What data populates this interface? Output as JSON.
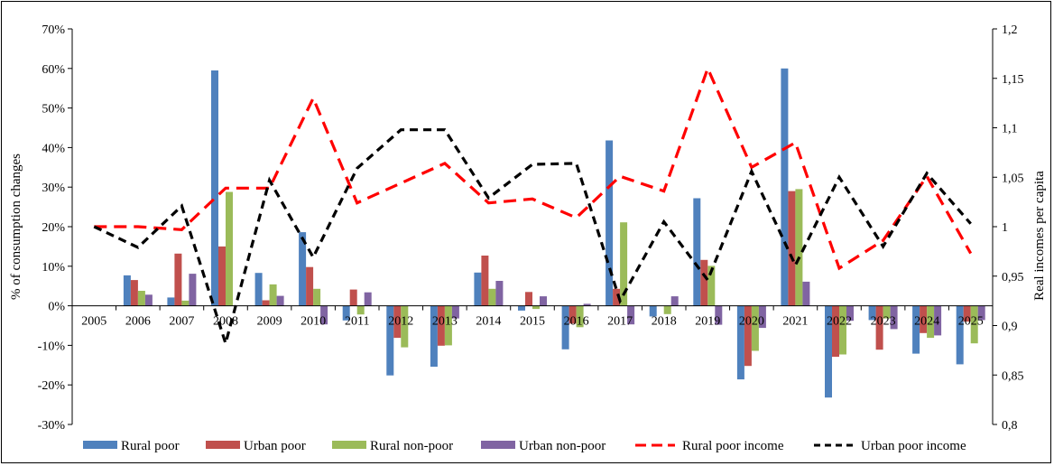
{
  "chart_data": {
    "type": "bar",
    "categories": [
      "2005",
      "2006",
      "2007",
      "2008",
      "2009",
      "2010",
      "2011",
      "2012",
      "2013",
      "2014",
      "2015",
      "2016",
      "2017",
      "2018",
      "2019",
      "2020",
      "2021",
      "2022",
      "2023",
      "2024",
      "2025"
    ],
    "left_axis": {
      "title": "% of consumption changes",
      "ylim": [
        -30,
        70
      ],
      "ticks": [
        -30,
        -20,
        -10,
        0,
        10,
        20,
        30,
        40,
        50,
        60,
        70
      ],
      "tick_labels": [
        "-30%",
        "-20%",
        "-10%",
        "0%",
        "10%",
        "20%",
        "30%",
        "40%",
        "50%",
        "60%",
        "70%"
      ]
    },
    "right_axis": {
      "title": "Real incomes per capita",
      "ylim": [
        0.8,
        1.2
      ],
      "ticks": [
        0.8,
        0.85,
        0.9,
        0.95,
        1.0,
        1.05,
        1.1,
        1.15,
        1.2
      ],
      "tick_labels": [
        "0,8",
        "0,85",
        "0,9",
        "0,95",
        "1",
        "1,05",
        "1,1",
        "1,15",
        "1,2"
      ]
    },
    "bar_series": [
      {
        "name": "Rural poor",
        "color": "#4F81BD",
        "values": [
          0,
          7.7,
          2.1,
          59.5,
          8.3,
          18.6,
          -3.7,
          -17.6,
          -15.4,
          8.4,
          -1.2,
          -11.0,
          41.8,
          -2.7,
          27.2,
          -18.6,
          60.0,
          -23.2,
          -3.6,
          -12.1,
          -14.8
        ]
      },
      {
        "name": "Urban poor",
        "color": "#C0504D",
        "values": [
          0,
          6.5,
          13.2,
          15.0,
          1.4,
          9.8,
          4.1,
          -8.1,
          -10.1,
          12.7,
          3.5,
          -4.5,
          4.3,
          0,
          11.6,
          -15.2,
          29.0,
          -12.9,
          -11.1,
          -6.9,
          -4.0
        ]
      },
      {
        "name": "Rural non-poor",
        "color": "#9BBB59",
        "values": [
          0,
          3.8,
          1.3,
          28.8,
          5.4,
          4.3,
          -2.2,
          -10.5,
          -10.0,
          4.3,
          -0.8,
          -5.4,
          21.1,
          -2.1,
          10.1,
          -11.4,
          29.5,
          -12.3,
          -3.2,
          -8.1,
          -9.5
        ]
      },
      {
        "name": "Urban non-poor",
        "color": "#8064A2",
        "values": [
          0,
          2.8,
          8.1,
          0,
          2.5,
          -4.7,
          3.4,
          0,
          -3.2,
          6.3,
          2.4,
          0.5,
          -4.7,
          2.4,
          -4.8,
          -5.6,
          6.1,
          -3.8,
          -5.9,
          -7.5,
          -3.6
        ]
      }
    ],
    "line_series": [
      {
        "name": "Rural poor income",
        "color": "#FF0000",
        "dash": "long",
        "values": [
          1.0,
          1.0,
          0.997,
          1.039,
          1.039,
          1.13,
          1.024,
          1.044,
          1.064,
          1.024,
          1.028,
          1.009,
          1.051,
          1.036,
          1.16,
          1.06,
          1.085,
          0.958,
          0.986,
          1.051,
          0.973
        ]
      },
      {
        "name": "Urban poor income",
        "color": "#000000",
        "dash": "short",
        "values": [
          1.0,
          0.979,
          1.021,
          0.882,
          1.047,
          0.969,
          1.059,
          1.098,
          1.098,
          1.029,
          1.063,
          1.064,
          0.925,
          1.005,
          0.946,
          1.056,
          0.961,
          1.05,
          0.98,
          1.054,
          1.003
        ]
      }
    ],
    "legend": {
      "position": "bottom",
      "items": [
        "Rural poor",
        "Urban poor",
        "Rural non-poor",
        "Urban non-poor",
        "Rural poor income",
        "Urban poor income"
      ]
    },
    "grid": false
  }
}
